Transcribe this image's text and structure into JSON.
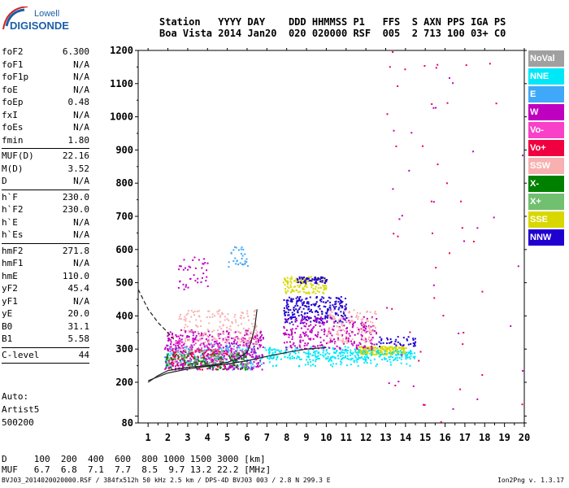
{
  "logo": {
    "line1": "Lowell",
    "line2": "DIGISONDE"
  },
  "header": {
    "row1": [
      "Station",
      "YYYY",
      "DAY",
      "DDD",
      "HHMMSS",
      "P1",
      "FFS",
      "S",
      "AXN",
      "PPS",
      "IGA",
      "PS"
    ],
    "row2": [
      "Boa Vista",
      "2014",
      "Jan20",
      "020",
      "020000",
      "RSF",
      "005",
      "2",
      "713",
      "100",
      "03+",
      "C0"
    ]
  },
  "params": [
    [
      {
        "k": "foF2",
        "v": "6.300"
      },
      {
        "k": "foF1",
        "v": "N/A"
      },
      {
        "k": "foF1p",
        "v": "N/A"
      },
      {
        "k": "foE",
        "v": "N/A"
      },
      {
        "k": "foEp",
        "v": "0.48"
      },
      {
        "k": "fxI",
        "v": "N/A"
      },
      {
        "k": "foEs",
        "v": "N/A"
      },
      {
        "k": "fmin",
        "v": "1.80"
      }
    ],
    [
      {
        "k": "MUF(D)",
        "v": "22.16"
      },
      {
        "k": "M(D)",
        "v": "3.52"
      },
      {
        "k": "D",
        "v": "N/A"
      }
    ],
    [
      {
        "k": "h`F",
        "v": "230.0"
      },
      {
        "k": "h`F2",
        "v": "230.0"
      },
      {
        "k": "h`E",
        "v": "N/A"
      },
      {
        "k": "h`Es",
        "v": "N/A"
      }
    ],
    [
      {
        "k": "hmF2",
        "v": "271.8"
      },
      {
        "k": "hmF1",
        "v": "N/A"
      },
      {
        "k": "hmE",
        "v": "110.0"
      },
      {
        "k": "yF2",
        "v": "45.4"
      },
      {
        "k": "yF1",
        "v": "N/A"
      },
      {
        "k": "yE",
        "v": "20.0"
      },
      {
        "k": "B0",
        "v": "31.1"
      },
      {
        "k": "B1",
        "v": "5.58"
      }
    ],
    [
      {
        "k": "C-level",
        "v": "44"
      }
    ]
  ],
  "auto": {
    "line1": "Auto:",
    "line2": "Artist5",
    "line3": "500200"
  },
  "legend": [
    {
      "label": "NoVal",
      "color": "#a0a0a0"
    },
    {
      "label": "NNE",
      "color": "#00e8f8"
    },
    {
      "label": "E",
      "color": "#40a8f8"
    },
    {
      "label": "W",
      "color": "#c000c0"
    },
    {
      "label": "Vo-",
      "color": "#f840c8"
    },
    {
      "label": "Vo+",
      "color": "#f00040"
    },
    {
      "label": "SSW",
      "color": "#f8b0b0"
    },
    {
      "label": "X-",
      "color": "#008000"
    },
    {
      "label": "X+",
      "color": "#70c070"
    },
    {
      "label": "SSE",
      "color": "#d8d800"
    },
    {
      "label": "NNW",
      "color": "#2000d0"
    }
  ],
  "chart_data": {
    "type": "scatter",
    "title": "",
    "xlabel": "",
    "ylabel": "",
    "xlim": [
      0.5,
      20
    ],
    "ylim": [
      80,
      1200
    ],
    "xticks": [
      1,
      2,
      3,
      4,
      5,
      6,
      7,
      8,
      9,
      10,
      11,
      12,
      13,
      14,
      15,
      16,
      17,
      18,
      19,
      20
    ],
    "yticks": [
      80,
      100,
      200,
      300,
      400,
      500,
      600,
      700,
      800,
      900,
      1000,
      1100,
      1200
    ],
    "ytick_labels": [
      "80",
      "",
      "200",
      "300",
      "400",
      "500",
      "600",
      "700",
      "800",
      "900",
      "1000",
      "1100",
      "1200"
    ],
    "clusters": [
      {
        "name": "NNE",
        "color": "#00e8f8",
        "x": [
          1.8,
          14.5
        ],
        "y": [
          250,
          310
        ],
        "n": 260
      },
      {
        "name": "E",
        "color": "#40a8f8",
        "x": [
          1.8,
          6.5
        ],
        "y": [
          240,
          320
        ],
        "n": 180
      },
      {
        "name": "W",
        "color": "#c000c0",
        "x": [
          1.8,
          6.8
        ],
        "y": [
          240,
          360
        ],
        "n": 420
      },
      {
        "name": "Vo-",
        "color": "#f840c8",
        "x": [
          2,
          6.5
        ],
        "y": [
          250,
          340
        ],
        "n": 160
      },
      {
        "name": "Vo+",
        "color": "#f00040",
        "x": [
          2,
          5
        ],
        "y": [
          240,
          300
        ],
        "n": 80
      },
      {
        "name": "SSW",
        "color": "#f8b0b0",
        "x": [
          2.5,
          6.5
        ],
        "y": [
          320,
          420
        ],
        "n": 160
      },
      {
        "name": "X-",
        "color": "#008000",
        "x": [
          1.8,
          6
        ],
        "y": [
          240,
          290
        ],
        "n": 100
      },
      {
        "name": "X+",
        "color": "#70c070",
        "x": [
          2,
          6
        ],
        "y": [
          250,
          300
        ],
        "n": 60
      },
      {
        "name": "SSE",
        "color": "#d8d800",
        "x": [
          7.8,
          10
        ],
        "y": [
          470,
          520
        ],
        "n": 120
      },
      {
        "name": "SSE",
        "color": "#d8d800",
        "x": [
          11.5,
          14
        ],
        "y": [
          285,
          310
        ],
        "n": 180
      },
      {
        "name": "NNW",
        "color": "#2000d0",
        "x": [
          7.8,
          11
        ],
        "y": [
          380,
          460
        ],
        "n": 260
      },
      {
        "name": "NNW",
        "color": "#2000d0",
        "x": [
          8.5,
          10
        ],
        "y": [
          500,
          520
        ],
        "n": 60
      },
      {
        "name": "W",
        "color": "#c000c0",
        "x": [
          7.8,
          12.5
        ],
        "y": [
          300,
          400
        ],
        "n": 260
      },
      {
        "name": "SSW",
        "color": "#f8b0b0",
        "x": [
          10,
          12.5
        ],
        "y": [
          320,
          420
        ],
        "n": 120
      },
      {
        "name": "NNE",
        "color": "#00e8f8",
        "x": [
          7,
          14.5
        ],
        "y": [
          270,
          300
        ],
        "n": 200
      },
      {
        "name": "W",
        "color": "#c000c0",
        "x": [
          2.5,
          4
        ],
        "y": [
          480,
          580
        ],
        "n": 40
      },
      {
        "name": "E",
        "color": "#40a8f8",
        "x": [
          5,
          6
        ],
        "y": [
          550,
          610
        ],
        "n": 30
      },
      {
        "name": "NNW",
        "color": "#2000d0",
        "x": [
          12.5,
          14.5
        ],
        "y": [
          310,
          340
        ],
        "n": 40
      },
      {
        "name": "Vo+",
        "color": "#f00040",
        "x": [
          13,
          20
        ],
        "y": [
          80,
          1200
        ],
        "n": 40
      },
      {
        "name": "W",
        "color": "#c000c0",
        "x": [
          13,
          20
        ],
        "y": [
          80,
          1200
        ],
        "n": 30
      }
    ],
    "curves": {
      "trace": {
        "x": [
          1,
          1.5,
          2,
          3,
          4,
          5,
          5.5,
          6,
          6.2,
          6.4,
          6.5
        ],
        "y": [
          200,
          220,
          235,
          245,
          250,
          260,
          270,
          290,
          320,
          370,
          420
        ]
      },
      "profile": {
        "x": [
          1,
          2,
          3,
          4,
          5,
          6,
          7,
          8,
          9,
          10
        ],
        "y": [
          205,
          228,
          240,
          248,
          255,
          265,
          278,
          290,
          300,
          305
        ]
      },
      "dashed": {
        "x": [
          0.5,
          1,
          1.5,
          2,
          2.3
        ],
        "y": [
          480,
          420,
          380,
          350,
          330
        ]
      }
    }
  },
  "dmuf": {
    "d_label": "D",
    "d_values": [
      "100",
      "200",
      "400",
      "600",
      "800",
      "1000",
      "1500",
      "3000"
    ],
    "d_unit": "[km]",
    "muf_label": "MUF",
    "muf_values": [
      "6.7",
      "6.8",
      "7.1",
      "7.7",
      "8.5",
      "9.7",
      "13.2",
      "22.2"
    ],
    "muf_unit": "[MHz]"
  },
  "footer": "BVJ03_2014020020000.RSF / 384fx512h 50 kHz 2.5 km / DPS-4D BVJ03 003 / 2.8 N 299.3 E",
  "version": "Ion2Png v. 1.3.17"
}
